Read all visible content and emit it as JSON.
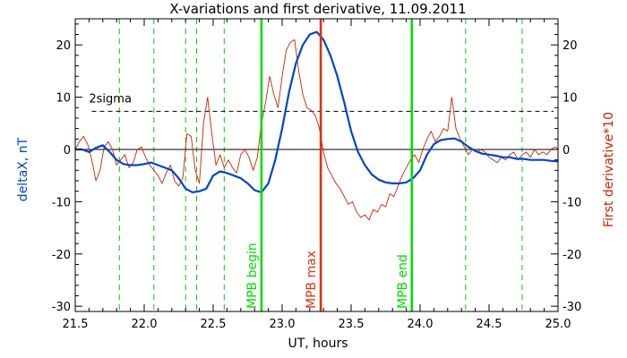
{
  "chart_data": {
    "type": "line",
    "title": "X-variations and first derivative, 11.09.2011",
    "xlabel": "UT, hours",
    "ylabel_left": "deltaX, nT",
    "ylabel_right": "First derivative*10",
    "xlim": [
      21.5,
      25.0
    ],
    "ylim": [
      -31,
      25
    ],
    "x_ticks": [
      "21.5",
      "22.0",
      "22.5",
      "23.0",
      "23.5",
      "24.0",
      "24.5",
      "25.0"
    ],
    "x_tick_values": [
      21.5,
      22.0,
      22.5,
      23.0,
      23.5,
      24.0,
      24.5,
      25.0
    ],
    "y_ticks": [
      "20",
      "10",
      "0",
      "-10",
      "-20",
      "-30"
    ],
    "y_tick_values": [
      20,
      10,
      0,
      -10,
      -20,
      -30
    ],
    "threshold": {
      "label": "2sigma",
      "value": 7.3,
      "style": "dashed",
      "color": "#000000"
    },
    "zero_line": {
      "value": 0,
      "color": "#000000"
    },
    "series": [
      {
        "key": "deltaX",
        "color": "#0044cc",
        "x": [
          21.5,
          21.55,
          21.6,
          21.65,
          21.7,
          21.75,
          21.8,
          21.85,
          21.9,
          21.95,
          22.0,
          22.05,
          22.1,
          22.15,
          22.2,
          22.25,
          22.3,
          22.35,
          22.4,
          22.45,
          22.5,
          22.55,
          22.6,
          22.65,
          22.7,
          22.75,
          22.8,
          22.85,
          22.9,
          22.95,
          23.0,
          23.05,
          23.1,
          23.15,
          23.2,
          23.25,
          23.3,
          23.35,
          23.4,
          23.45,
          23.5,
          23.55,
          23.6,
          23.65,
          23.7,
          23.75,
          23.8,
          23.85,
          23.9,
          23.95,
          24.0,
          24.05,
          24.1,
          24.15,
          24.2,
          24.25,
          24.3,
          24.35,
          24.4,
          24.45,
          24.5,
          24.55,
          24.6,
          24.65,
          24.7,
          24.75,
          24.8,
          24.85,
          24.9,
          24.95,
          25.0
        ],
        "values": [
          0.0,
          0.0,
          -0.5,
          0.3,
          0.8,
          -0.5,
          -2.0,
          -2.8,
          -3.0,
          -3.0,
          -2.8,
          -2.5,
          -3.0,
          -3.5,
          -4.0,
          -5.5,
          -7.5,
          -8.2,
          -8.0,
          -7.5,
          -5.0,
          -4.2,
          -4.5,
          -5.0,
          -5.5,
          -6.5,
          -7.8,
          -8.2,
          -6.5,
          -2.0,
          4.0,
          11.0,
          16.5,
          20.0,
          22.0,
          22.5,
          21.0,
          18.0,
          14.0,
          9.0,
          3.5,
          -0.5,
          -3.0,
          -4.8,
          -5.8,
          -6.3,
          -6.5,
          -6.5,
          -6.3,
          -5.5,
          -4.0,
          -1.0,
          1.0,
          1.8,
          2.0,
          2.1,
          1.5,
          0.5,
          -0.3,
          -0.8,
          -1.0,
          -1.2,
          -1.5,
          -1.5,
          -1.8,
          -1.8,
          -2.0,
          -2.0,
          -2.0,
          -2.2,
          -2.3
        ]
      },
      {
        "key": "derivative",
        "color": "#cc2200",
        "x": [
          21.5,
          21.53,
          21.56,
          21.59,
          21.62,
          21.65,
          21.68,
          21.71,
          21.74,
          21.77,
          21.8,
          21.83,
          21.86,
          21.89,
          21.92,
          21.95,
          21.98,
          22.01,
          22.04,
          22.07,
          22.1,
          22.13,
          22.16,
          22.19,
          22.22,
          22.25,
          22.28,
          22.31,
          22.34,
          22.37,
          22.4,
          22.43,
          22.46,
          22.49,
          22.52,
          22.55,
          22.58,
          22.61,
          22.64,
          22.67,
          22.7,
          22.73,
          22.76,
          22.79,
          22.82,
          22.85,
          22.88,
          22.91,
          22.94,
          22.97,
          23.0,
          23.03,
          23.06,
          23.09,
          23.12,
          23.15,
          23.18,
          23.21,
          23.24,
          23.27,
          23.3,
          23.33,
          23.36,
          23.39,
          23.42,
          23.45,
          23.48,
          23.51,
          23.54,
          23.57,
          23.6,
          23.63,
          23.66,
          23.69,
          23.72,
          23.75,
          23.78,
          23.81,
          23.84,
          23.87,
          23.9,
          23.93,
          23.96,
          23.99,
          24.02,
          24.05,
          24.08,
          24.11,
          24.14,
          24.17,
          24.2,
          24.23,
          24.26,
          24.29,
          24.32,
          24.35,
          24.38,
          24.41,
          24.44,
          24.47,
          24.5,
          24.53,
          24.56,
          24.59,
          24.62,
          24.65,
          24.68,
          24.71,
          24.74,
          24.77,
          24.8,
          24.83,
          24.86,
          24.89,
          24.92,
          24.95,
          24.98,
          25.0
        ],
        "values": [
          0.0,
          1.5,
          2.5,
          1.0,
          -2.0,
          -6.0,
          -4.0,
          0.5,
          1.5,
          0.0,
          -3.0,
          -2.0,
          -1.0,
          -3.5,
          -2.5,
          0.0,
          0.5,
          -1.5,
          -3.0,
          -4.0,
          -5.0,
          -6.5,
          -4.5,
          -3.0,
          -6.0,
          -7.0,
          -5.5,
          3.0,
          2.5,
          -4.0,
          -6.5,
          5.0,
          10.0,
          3.0,
          -3.0,
          -1.0,
          -3.5,
          -2.0,
          -3.5,
          -4.5,
          -1.0,
          0.0,
          -1.5,
          -4.0,
          -1.5,
          5.0,
          9.0,
          14.0,
          10.5,
          8.0,
          14.0,
          19.0,
          20.5,
          21.0,
          15.0,
          10.5,
          8.0,
          7.5,
          6.5,
          4.0,
          -0.5,
          -3.5,
          -5.0,
          -6.5,
          -7.5,
          -9.0,
          -10.5,
          -10.0,
          -12.0,
          -13.0,
          -12.5,
          -13.5,
          -11.5,
          -12.0,
          -10.5,
          -11.0,
          -8.5,
          -9.0,
          -7.0,
          -5.0,
          -3.5,
          -2.0,
          -1.0,
          -2.5,
          0.0,
          2.0,
          3.5,
          1.5,
          2.5,
          4.0,
          3.5,
          10.0,
          4.0,
          2.0,
          0.5,
          -1.0,
          0.0,
          -0.5,
          0.0,
          -0.5,
          -1.5,
          -2.0,
          -2.5,
          -1.5,
          -2.0,
          -1.0,
          -0.5,
          -2.0,
          -1.0,
          -0.5,
          -1.5,
          0.0,
          -1.0,
          -0.5,
          -1.0,
          0.0,
          0.5,
          0.0
        ]
      }
    ],
    "dashed_vlines": {
      "color": "#00cc00",
      "x": [
        21.82,
        22.07,
        22.3,
        22.38,
        22.58,
        24.33,
        24.74
      ]
    },
    "solid_vlines": [
      {
        "x": 22.85,
        "label": "MPB begin",
        "color": "#00dd00"
      },
      {
        "x": 23.28,
        "label": "MPB max",
        "color": "#e03010"
      },
      {
        "x": 23.94,
        "label": "MPB end",
        "color": "#00dd00"
      }
    ],
    "colors": {
      "left_axis_label": "#0044cc",
      "right_axis_label": "#cc2200"
    },
    "grid": false,
    "legend": "none"
  }
}
